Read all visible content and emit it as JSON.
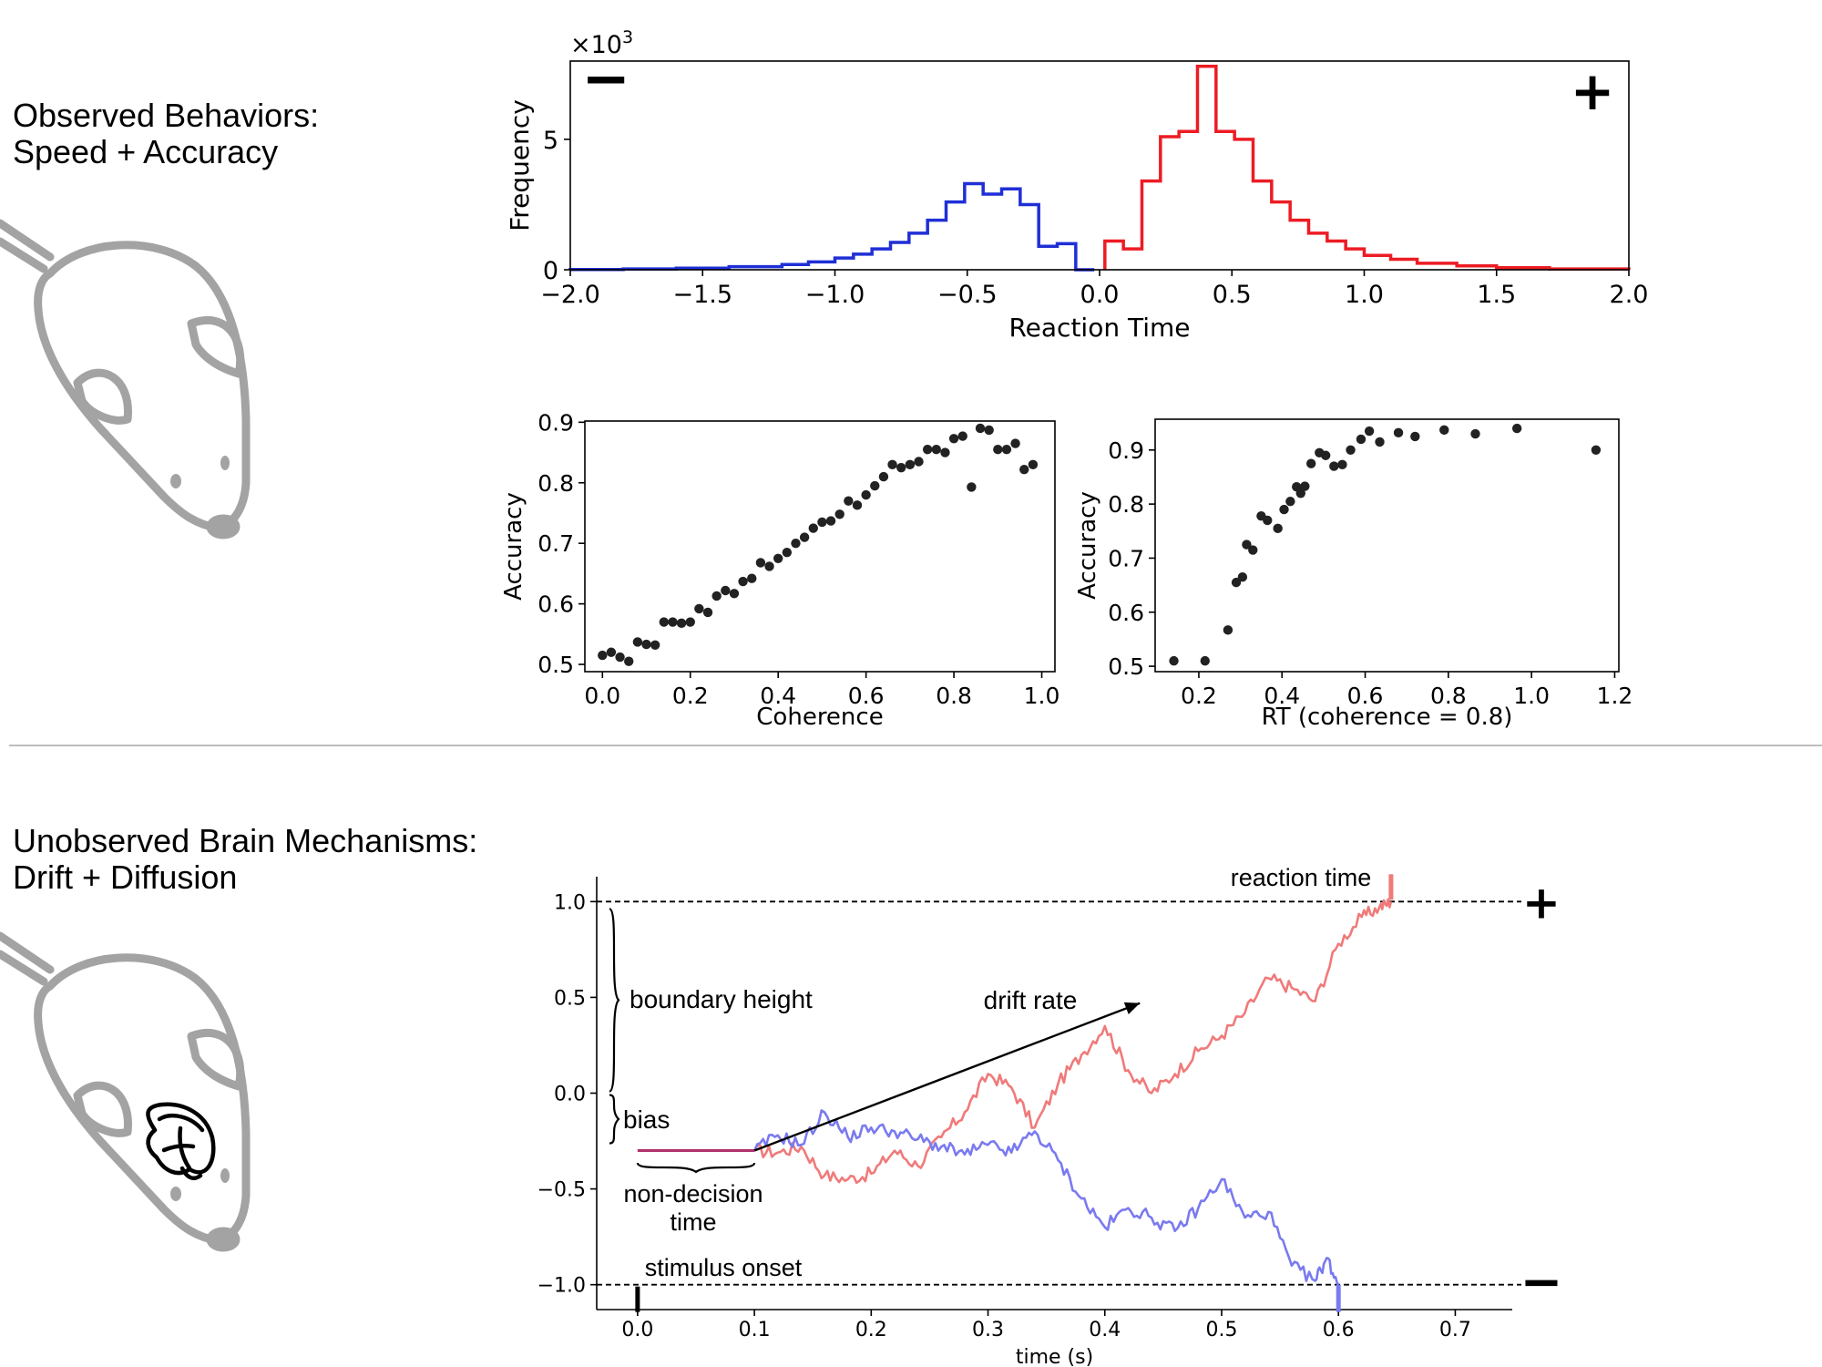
{
  "headings": {
    "observed_line1": "Observed Behaviors:",
    "observed_line2": "Speed + Accuracy",
    "unobserved_line1": "Unobserved Brain Mechanisms:",
    "unobserved_line2": "Drift + Diffusion"
  },
  "icons": {
    "mouse": "mouse-icon",
    "brain": "brain-icon"
  },
  "colors": {
    "negative": "#1f2fd6",
    "positive": "#ec1c24",
    "neg_trace": "#7a7af0",
    "pos_trace": "#f07a7a",
    "nondecision": "#b0306a"
  },
  "chart_data": [
    {
      "type": "histogram",
      "xlabel": "Reaction Time",
      "ylabel": "Frequency",
      "y_multiplier": "×10",
      "y_multiplier_exp": "3",
      "xlim": [
        -2.0,
        2.0
      ],
      "ylim": [
        0,
        8
      ],
      "xticks": [
        "−2.0",
        "−1.5",
        "−1.0",
        "−0.5",
        "0.0",
        "0.5",
        "1.0",
        "1.5",
        "2.0"
      ],
      "yticks": [
        "0",
        "5"
      ],
      "negative_marker": "−",
      "positive_marker": "+",
      "bin_width": 0.07,
      "negative_series": {
        "edges": [
          -2.0,
          -1.8,
          -1.6,
          -1.4,
          -1.2,
          -1.1,
          -1.0,
          -0.93,
          -0.86,
          -0.79,
          -0.72,
          -0.65,
          -0.58,
          -0.51,
          -0.44,
          -0.37,
          -0.3,
          -0.23,
          -0.16,
          -0.09,
          -0.02
        ],
        "values": [
          0.01,
          0.03,
          0.06,
          0.12,
          0.2,
          0.3,
          0.45,
          0.6,
          0.8,
          1.05,
          1.4,
          1.9,
          2.6,
          3.3,
          2.9,
          3.1,
          2.5,
          0.9,
          1.0,
          0.0
        ]
      },
      "positive_series": {
        "edges": [
          0.02,
          0.09,
          0.16,
          0.23,
          0.3,
          0.37,
          0.44,
          0.51,
          0.58,
          0.65,
          0.72,
          0.79,
          0.86,
          0.93,
          1.0,
          1.1,
          1.2,
          1.35,
          1.5,
          1.7,
          2.0
        ],
        "values": [
          1.1,
          0.8,
          3.4,
          5.1,
          5.3,
          7.8,
          5.3,
          5.0,
          3.4,
          2.6,
          1.9,
          1.4,
          1.1,
          0.8,
          0.55,
          0.4,
          0.25,
          0.15,
          0.08,
          0.03
        ]
      }
    },
    {
      "type": "scatter",
      "xlabel": "Coherence",
      "ylabel": "Accuracy",
      "xlim": [
        -0.04,
        1.03
      ],
      "ylim": [
        0.488,
        0.902
      ],
      "xticks": [
        "0.0",
        "0.2",
        "0.4",
        "0.6",
        "0.8",
        "1.0"
      ],
      "yticks": [
        "0.5",
        "0.6",
        "0.7",
        "0.8",
        "0.9"
      ],
      "x": [
        0.0,
        0.02,
        0.04,
        0.06,
        0.08,
        0.1,
        0.12,
        0.14,
        0.16,
        0.18,
        0.2,
        0.22,
        0.24,
        0.26,
        0.28,
        0.3,
        0.32,
        0.34,
        0.36,
        0.38,
        0.4,
        0.42,
        0.44,
        0.46,
        0.48,
        0.5,
        0.52,
        0.54,
        0.56,
        0.58,
        0.6,
        0.62,
        0.64,
        0.66,
        0.68,
        0.7,
        0.72,
        0.74,
        0.76,
        0.78,
        0.8,
        0.82,
        0.84,
        0.86,
        0.88,
        0.9,
        0.92,
        0.94,
        0.96,
        0.98
      ],
      "y": [
        0.515,
        0.52,
        0.512,
        0.505,
        0.537,
        0.533,
        0.532,
        0.57,
        0.57,
        0.568,
        0.57,
        0.592,
        0.586,
        0.613,
        0.622,
        0.617,
        0.637,
        0.642,
        0.668,
        0.662,
        0.675,
        0.685,
        0.7,
        0.71,
        0.725,
        0.735,
        0.737,
        0.748,
        0.77,
        0.763,
        0.78,
        0.795,
        0.81,
        0.83,
        0.825,
        0.83,
        0.835,
        0.855,
        0.855,
        0.85,
        0.873,
        0.877,
        0.793,
        0.89,
        0.887,
        0.855,
        0.855,
        0.865,
        0.822,
        0.83
      ]
    },
    {
      "type": "scatter",
      "xlabel": "RT (coherence = 0.8)",
      "ylabel": "Accuracy",
      "xlim": [
        0.095,
        1.21
      ],
      "ylim": [
        0.49,
        0.957
      ],
      "xticks": [
        "0.2",
        "0.4",
        "0.6",
        "0.8",
        "1.0",
        "1.2"
      ],
      "yticks": [
        "0.5",
        "0.6",
        "0.7",
        "0.8",
        "0.9"
      ],
      "x": [
        0.14,
        0.215,
        0.27,
        0.29,
        0.305,
        0.315,
        0.33,
        0.35,
        0.365,
        0.39,
        0.405,
        0.42,
        0.435,
        0.445,
        0.455,
        0.47,
        0.49,
        0.505,
        0.525,
        0.545,
        0.565,
        0.59,
        0.61,
        0.635,
        0.68,
        0.72,
        0.79,
        0.865,
        0.965,
        1.155
      ],
      "y": [
        0.51,
        0.51,
        0.567,
        0.655,
        0.665,
        0.725,
        0.715,
        0.778,
        0.77,
        0.755,
        0.79,
        0.805,
        0.832,
        0.82,
        0.833,
        0.875,
        0.895,
        0.89,
        0.87,
        0.873,
        0.9,
        0.92,
        0.935,
        0.915,
        0.932,
        0.925,
        0.937,
        0.93,
        0.94,
        0.9
      ]
    },
    {
      "type": "line",
      "xlabel": "time (s)",
      "xlim": [
        -0.035,
        0.78
      ],
      "ylim": [
        -1.13,
        1.13
      ],
      "xticks": [
        "0.0",
        "0.1",
        "0.2",
        "0.3",
        "0.4",
        "0.5",
        "0.6",
        "0.7"
      ],
      "yticks": [
        "1.0",
        "0.5",
        "0.0",
        "−0.5",
        "−1.0"
      ],
      "boundary_upper": 1.0,
      "boundary_lower": -1.0,
      "bias": -0.3,
      "non_decision_time": 0.1,
      "drift_arrow": {
        "x0": 0.1,
        "y0": -0.3,
        "x1": 0.43,
        "y1": 0.47
      },
      "positive_marker": "+",
      "negative_marker": "−",
      "labels": {
        "reaction_time": "reaction time",
        "boundary_height": "boundary height",
        "drift_rate": "drift rate",
        "bias": "bias",
        "non_decision_1": "non-decision",
        "non_decision_2": "time",
        "stimulus_onset": "stimulus onset"
      },
      "series": [
        {
          "x": [
            0.1,
            0.12,
            0.14,
            0.16,
            0.18,
            0.2,
            0.22,
            0.24,
            0.26,
            0.28,
            0.3,
            0.32,
            0.34,
            0.36,
            0.38,
            0.4,
            0.42,
            0.44,
            0.46,
            0.48,
            0.5,
            0.52,
            0.54,
            0.56,
            0.58,
            0.6,
            0.62,
            0.635,
            0.645
          ],
          "y": [
            -0.3,
            -0.31,
            -0.28,
            -0.43,
            -0.45,
            -0.42,
            -0.3,
            -0.38,
            -0.23,
            -0.1,
            0.1,
            0.03,
            -0.18,
            0.05,
            0.2,
            0.35,
            0.12,
            0.0,
            0.1,
            0.22,
            0.3,
            0.42,
            0.6,
            0.55,
            0.48,
            0.78,
            0.92,
            0.97,
            1.0
          ]
        },
        {
          "x": [
            0.1,
            0.12,
            0.14,
            0.16,
            0.18,
            0.2,
            0.22,
            0.24,
            0.26,
            0.28,
            0.3,
            0.32,
            0.34,
            0.36,
            0.38,
            0.4,
            0.42,
            0.44,
            0.46,
            0.48,
            0.5,
            0.52,
            0.54,
            0.56,
            0.58,
            0.59,
            0.6
          ],
          "y": [
            -0.3,
            -0.22,
            -0.27,
            -0.1,
            -0.23,
            -0.18,
            -0.2,
            -0.24,
            -0.28,
            -0.32,
            -0.27,
            -0.31,
            -0.2,
            -0.35,
            -0.55,
            -0.7,
            -0.6,
            -0.65,
            -0.72,
            -0.6,
            -0.45,
            -0.65,
            -0.62,
            -0.9,
            -0.98,
            -0.86,
            -1.0
          ]
        }
      ]
    }
  ]
}
